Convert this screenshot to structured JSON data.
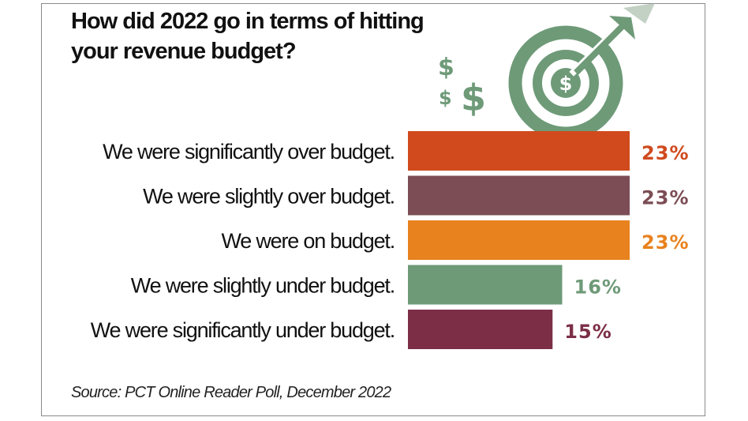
{
  "chart_data": {
    "type": "bar",
    "orientation": "horizontal",
    "title": "How did 2022 go in terms of hitting your revenue budget?",
    "title_lines": [
      "How did 2022 go in terms of hitting",
      "your revenue budget?"
    ],
    "categories": [
      "We were significantly over budget.",
      "We were slightly over budget.",
      "We were on budget.",
      "We were slightly under budget.",
      "We were significantly under budget."
    ],
    "values": [
      23,
      23,
      23,
      16,
      15
    ],
    "value_labels": [
      "23%",
      "23%",
      "23%",
      "16%",
      "15%"
    ],
    "colors": [
      "#d04a1e",
      "#7c4d55",
      "#e8821e",
      "#6e9a78",
      "#7c2e46"
    ],
    "unit": "%",
    "xlabel": "",
    "ylabel": "",
    "grid": false,
    "legend": "none",
    "source": "Source: PCT Online Reader Poll, December 2022"
  },
  "icons": {
    "accent": "#6e9a78",
    "target": "target-with-arrow-and-dollar-icon"
  }
}
